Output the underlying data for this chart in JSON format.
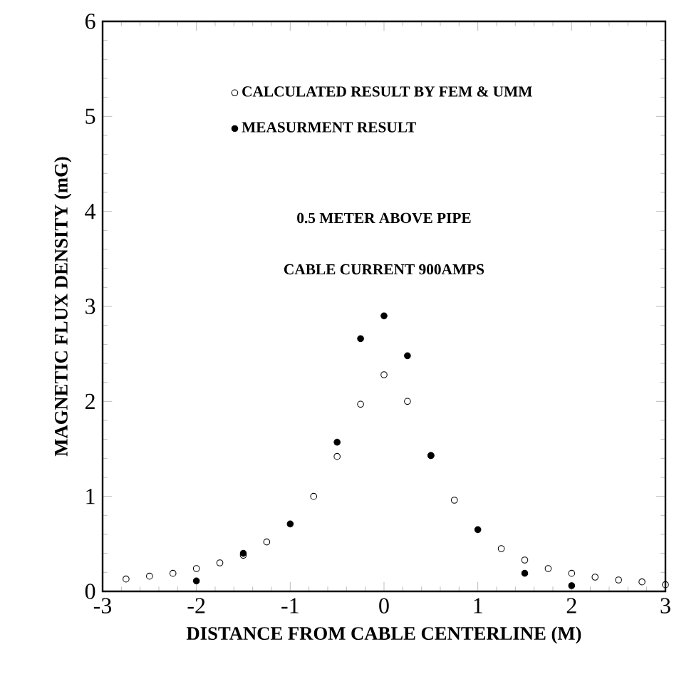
{
  "chart_data": {
    "type": "scatter",
    "xlabel": "DISTANCE FROM CABLE CENTERLINE (M)",
    "ylabel": "MAGNETIC FLUX DENSITY (mG)",
    "x": [
      -2.75,
      -2.5,
      -2.25,
      -2,
      -1.75,
      -1.5,
      -1.25,
      -1,
      -0.75,
      -0.5,
      -0.25,
      0,
      0.25,
      0.5,
      0.75,
      1,
      1.25,
      1.5,
      1.75,
      2,
      2.25,
      2.5,
      2.75,
      3
    ],
    "series": [
      {
        "name": "CALCULATED RESULT BY FEM & UMM",
        "color": "#000000",
        "marker": "circle_open",
        "values": [
          0.13,
          0.16,
          0.19,
          0.24,
          0.3,
          0.38,
          0.52,
          null,
          1.0,
          1.42,
          1.97,
          2.28,
          2.0,
          1.43,
          0.96,
          null,
          0.45,
          0.33,
          0.24,
          0.19,
          0.15,
          0.12,
          0.1,
          0.07
        ]
      },
      {
        "name": "MEASURMENT RESULT",
        "color": "#000000",
        "marker": "circle",
        "values": [
          null,
          null,
          null,
          0.11,
          null,
          0.4,
          null,
          0.71,
          null,
          1.57,
          2.66,
          2.9,
          2.48,
          1.43,
          null,
          0.65,
          null,
          0.19,
          null,
          0.06,
          null,
          null,
          null,
          null
        ]
      }
    ],
    "annotations": [
      "0.5 METER ABOVE PIPE",
      "CABLE CURRENT 900AMPS"
    ],
    "xlim": [
      -3,
      3
    ],
    "ylim": [
      0,
      6
    ],
    "xticks": [
      -3,
      -2,
      -1,
      0,
      1,
      2,
      3
    ],
    "yticks": [
      0,
      1,
      2,
      3,
      4,
      5,
      6
    ],
    "legend": "top",
    "grid": false
  }
}
